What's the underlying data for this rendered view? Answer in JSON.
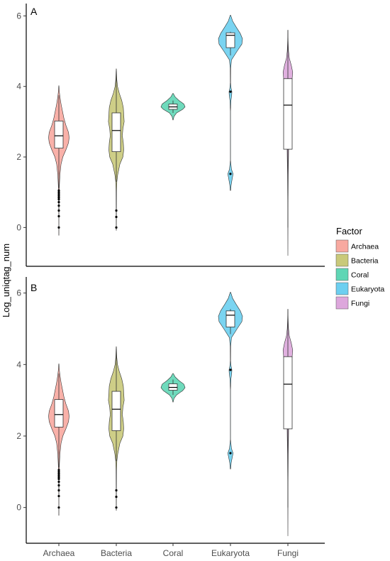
{
  "chart_data": [
    {
      "type": "violin",
      "panel": "A",
      "ylabel": "Log_uniqtag_num",
      "ylim": [
        -1.1,
        6.35
      ],
      "yticks": [
        "0",
        "2",
        "4",
        "6"
      ],
      "categories": [
        "Archaea",
        "Bacteria",
        "Coral",
        "Eukaryota",
        "Fungi"
      ],
      "colors": [
        "#F8A9A0",
        "#C9C97A",
        "#5FD6B5",
        "#6CCFF0",
        "#DDA7DC"
      ],
      "violins": [
        {
          "name": "Archaea",
          "ymin": -0.22,
          "ymax": 4.02,
          "profile": [
            [
              -0.22,
              0.003
            ],
            [
              0.3,
              0.008
            ],
            [
              0.8,
              0.02
            ],
            [
              1.2,
              0.045
            ],
            [
              1.5,
              0.09
            ],
            [
              1.8,
              0.18
            ],
            [
              2.0,
              0.33
            ],
            [
              2.2,
              0.58
            ],
            [
              2.4,
              0.8
            ],
            [
              2.55,
              0.85
            ],
            [
              2.7,
              0.8
            ],
            [
              2.9,
              0.58
            ],
            [
              3.1,
              0.42
            ],
            [
              3.3,
              0.3
            ],
            [
              3.5,
              0.18
            ],
            [
              3.7,
              0.09
            ],
            [
              3.85,
              0.04
            ],
            [
              4.02,
              0.005
            ]
          ],
          "box": {
            "q1": 2.25,
            "median": 2.6,
            "q3": 3.02,
            "lw": 1.12,
            "uw": 3.75
          },
          "outliers": [
            1.05,
            1.0,
            0.95,
            0.9,
            0.85,
            0.8,
            0.72,
            0.62,
            0.48,
            0.32,
            0.0
          ]
        },
        {
          "name": "Bacteria",
          "ymin": -0.08,
          "ymax": 4.5,
          "profile": [
            [
              -0.08,
              0.003
            ],
            [
              0.5,
              0.01
            ],
            [
              1.0,
              0.02
            ],
            [
              1.3,
              0.05
            ],
            [
              1.5,
              0.12
            ],
            [
              1.8,
              0.3
            ],
            [
              2.0,
              0.55
            ],
            [
              2.2,
              0.62
            ],
            [
              2.4,
              0.58
            ],
            [
              2.6,
              0.5
            ],
            [
              2.8,
              0.55
            ],
            [
              3.0,
              0.65
            ],
            [
              3.2,
              0.62
            ],
            [
              3.4,
              0.58
            ],
            [
              3.6,
              0.45
            ],
            [
              3.8,
              0.25
            ],
            [
              4.0,
              0.1
            ],
            [
              4.2,
              0.04
            ],
            [
              4.5,
              0.005
            ]
          ],
          "box": {
            "q1": 2.15,
            "median": 2.75,
            "q3": 3.25,
            "lw": 1.3,
            "uw": 4.45
          },
          "outliers": [
            0.48,
            0.3,
            0.0
          ]
        },
        {
          "name": "Coral",
          "ymin": 3.05,
          "ymax": 3.8,
          "profile": [
            [
              3.05,
              0.01
            ],
            [
              3.15,
              0.08
            ],
            [
              3.25,
              0.3
            ],
            [
              3.35,
              0.8
            ],
            [
              3.42,
              1.0
            ],
            [
              3.5,
              0.9
            ],
            [
              3.6,
              0.5
            ],
            [
              3.7,
              0.18
            ],
            [
              3.8,
              0.02
            ]
          ],
          "box": {
            "q1": 3.35,
            "median": 3.42,
            "q3": 3.5,
            "lw": 3.25,
            "uw": 3.6
          },
          "outliers": []
        },
        {
          "name": "Eukaryota",
          "ymin": 1.05,
          "ymax": 6.02,
          "profile": [
            [
              1.05,
              0.02
            ],
            [
              1.2,
              0.05
            ],
            [
              1.4,
              0.15
            ],
            [
              1.52,
              0.22
            ],
            [
              1.65,
              0.08
            ],
            [
              1.9,
              0.004
            ],
            [
              2.5,
              0.003
            ],
            [
              3.3,
              0.003
            ],
            [
              3.6,
              0.04
            ],
            [
              3.75,
              0.1
            ],
            [
              3.85,
              0.12
            ],
            [
              3.95,
              0.05
            ],
            [
              4.1,
              0.01
            ],
            [
              4.5,
              0.02
            ],
            [
              4.75,
              0.08
            ],
            [
              5.0,
              0.55
            ],
            [
              5.2,
              0.95
            ],
            [
              5.35,
              1.0
            ],
            [
              5.5,
              0.82
            ],
            [
              5.7,
              0.45
            ],
            [
              5.85,
              0.18
            ],
            [
              6.02,
              0.02
            ]
          ],
          "box": {
            "q1": 5.1,
            "median": 5.45,
            "q3": 5.52,
            "lw": 4.88,
            "uw": 5.55
          },
          "outliers": [
            3.85,
            1.52
          ]
        },
        {
          "name": "Fungi",
          "ymin": -0.8,
          "ymax": 5.6,
          "profile": [
            [
              -0.8,
              0.002
            ],
            [
              0.0,
              0.004
            ],
            [
              0.5,
              0.008
            ],
            [
              1.0,
              0.015
            ],
            [
              1.5,
              0.03
            ],
            [
              2.0,
              0.05
            ],
            [
              2.5,
              0.07
            ],
            [
              3.0,
              0.09
            ],
            [
              3.5,
              0.12
            ],
            [
              4.0,
              0.2
            ],
            [
              4.2,
              0.35
            ],
            [
              4.4,
              0.4
            ],
            [
              4.6,
              0.28
            ],
            [
              4.8,
              0.12
            ],
            [
              5.0,
              0.05
            ],
            [
              5.3,
              0.02
            ],
            [
              5.6,
              0.002
            ]
          ],
          "box": {
            "q1": 2.22,
            "median": 3.47,
            "q3": 4.22,
            "lw": 0.0,
            "uw": 5.6
          },
          "outliers": []
        }
      ]
    },
    {
      "type": "violin",
      "panel": "B",
      "ylabel": "",
      "ylim": [
        -1.0,
        6.45
      ],
      "yticks": [
        "0",
        "2",
        "4",
        "6"
      ],
      "categories": [
        "Archaea",
        "Bacteria",
        "Coral",
        "Eukaryota",
        "Fungi"
      ],
      "colors": [
        "#F8A9A0",
        "#C9C97A",
        "#5FD6B5",
        "#6CCFF0",
        "#DDA7DC"
      ],
      "violins": [
        {
          "name": "Archaea",
          "ymin": -0.22,
          "ymax": 4.02,
          "profile": [
            [
              -0.22,
              0.003
            ],
            [
              0.3,
              0.008
            ],
            [
              0.8,
              0.02
            ],
            [
              1.2,
              0.045
            ],
            [
              1.5,
              0.09
            ],
            [
              1.8,
              0.18
            ],
            [
              2.0,
              0.33
            ],
            [
              2.2,
              0.58
            ],
            [
              2.4,
              0.8
            ],
            [
              2.55,
              0.85
            ],
            [
              2.7,
              0.8
            ],
            [
              2.9,
              0.58
            ],
            [
              3.1,
              0.42
            ],
            [
              3.3,
              0.3
            ],
            [
              3.5,
              0.18
            ],
            [
              3.7,
              0.09
            ],
            [
              3.85,
              0.04
            ],
            [
              4.02,
              0.005
            ]
          ],
          "box": {
            "q1": 2.25,
            "median": 2.6,
            "q3": 3.02,
            "lw": 1.12,
            "uw": 3.75
          },
          "outliers": [
            1.05,
            1.0,
            0.95,
            0.9,
            0.85,
            0.8,
            0.72,
            0.62,
            0.48,
            0.32,
            0.0
          ]
        },
        {
          "name": "Bacteria",
          "ymin": -0.08,
          "ymax": 4.5,
          "profile": [
            [
              -0.08,
              0.003
            ],
            [
              0.5,
              0.01
            ],
            [
              1.0,
              0.02
            ],
            [
              1.3,
              0.05
            ],
            [
              1.5,
              0.12
            ],
            [
              1.8,
              0.3
            ],
            [
              2.0,
              0.55
            ],
            [
              2.2,
              0.62
            ],
            [
              2.4,
              0.58
            ],
            [
              2.6,
              0.5
            ],
            [
              2.8,
              0.55
            ],
            [
              3.0,
              0.65
            ],
            [
              3.2,
              0.62
            ],
            [
              3.4,
              0.58
            ],
            [
              3.6,
              0.45
            ],
            [
              3.8,
              0.25
            ],
            [
              4.0,
              0.1
            ],
            [
              4.2,
              0.04
            ],
            [
              4.5,
              0.005
            ]
          ],
          "box": {
            "q1": 2.15,
            "median": 2.75,
            "q3": 3.25,
            "lw": 1.3,
            "uw": 4.45
          },
          "outliers": [
            0.48,
            0.3,
            0.0
          ]
        },
        {
          "name": "Coral",
          "ymin": 2.95,
          "ymax": 3.75,
          "profile": [
            [
              2.95,
              0.01
            ],
            [
              3.05,
              0.08
            ],
            [
              3.15,
              0.3
            ],
            [
              3.27,
              0.8
            ],
            [
              3.35,
              1.0
            ],
            [
              3.45,
              0.9
            ],
            [
              3.55,
              0.5
            ],
            [
              3.65,
              0.18
            ],
            [
              3.75,
              0.02
            ]
          ],
          "box": {
            "q1": 3.28,
            "median": 3.36,
            "q3": 3.46,
            "lw": 3.15,
            "uw": 3.58
          },
          "outliers": []
        },
        {
          "name": "Eukaryota",
          "ymin": 1.08,
          "ymax": 6.02,
          "profile": [
            [
              1.08,
              0.02
            ],
            [
              1.25,
              0.06
            ],
            [
              1.42,
              0.16
            ],
            [
              1.52,
              0.22
            ],
            [
              1.65,
              0.08
            ],
            [
              1.9,
              0.004
            ],
            [
              2.5,
              0.003
            ],
            [
              3.3,
              0.003
            ],
            [
              3.6,
              0.04
            ],
            [
              3.75,
              0.1
            ],
            [
              3.85,
              0.12
            ],
            [
              3.95,
              0.05
            ],
            [
              4.1,
              0.01
            ],
            [
              4.5,
              0.02
            ],
            [
              4.75,
              0.08
            ],
            [
              5.0,
              0.55
            ],
            [
              5.2,
              0.95
            ],
            [
              5.35,
              1.0
            ],
            [
              5.5,
              0.82
            ],
            [
              5.7,
              0.45
            ],
            [
              5.85,
              0.18
            ],
            [
              6.02,
              0.02
            ]
          ],
          "box": {
            "q1": 5.05,
            "median": 5.38,
            "q3": 5.5,
            "lw": 4.85,
            "uw": 5.55
          },
          "outliers": [
            3.85,
            1.52
          ]
        },
        {
          "name": "Fungi",
          "ymin": -0.8,
          "ymax": 5.55,
          "profile": [
            [
              -0.8,
              0.002
            ],
            [
              0.0,
              0.004
            ],
            [
              0.5,
              0.008
            ],
            [
              1.0,
              0.015
            ],
            [
              1.5,
              0.03
            ],
            [
              2.0,
              0.05
            ],
            [
              2.5,
              0.07
            ],
            [
              3.0,
              0.09
            ],
            [
              3.5,
              0.12
            ],
            [
              4.0,
              0.2
            ],
            [
              4.2,
              0.35
            ],
            [
              4.4,
              0.4
            ],
            [
              4.6,
              0.28
            ],
            [
              4.8,
              0.12
            ],
            [
              5.0,
              0.05
            ],
            [
              5.3,
              0.02
            ],
            [
              5.55,
              0.002
            ]
          ],
          "box": {
            "q1": 2.2,
            "median": 3.45,
            "q3": 4.22,
            "lw": 0.0,
            "uw": 5.55
          },
          "outliers": []
        }
      ]
    }
  ],
  "legend": {
    "title": "Factor",
    "placement": "right",
    "items": [
      {
        "label": "Archaea",
        "color": "#F8A9A0"
      },
      {
        "label": "Bacteria",
        "color": "#C9C97A"
      },
      {
        "label": "Coral",
        "color": "#5FD6B5"
      },
      {
        "label": "Eukaryota",
        "color": "#6CCFF0"
      },
      {
        "label": "Fungi",
        "color": "#DDA7DC"
      }
    ]
  },
  "panel_tags": [
    "A",
    "B"
  ],
  "ylabel": "Log_uniqtag_num"
}
